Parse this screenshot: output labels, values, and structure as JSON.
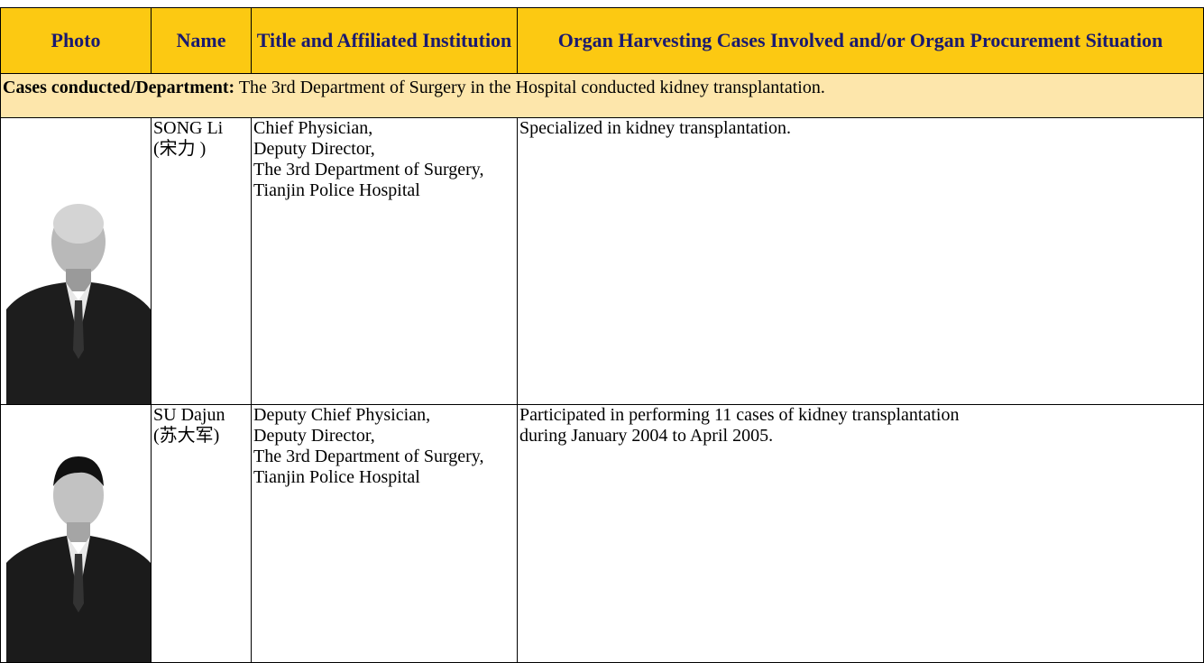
{
  "header": {
    "columns": [
      "Photo",
      "Name",
      "Title and Affiliated Institution",
      "Organ Harvesting Cases Involved and/or Organ Procurement Situation"
    ]
  },
  "section": {
    "label": "Cases conducted/Department:",
    "text": "The 3rd Department of Surgery in the Hospital conducted kidney transplantation."
  },
  "rows": [
    {
      "name": "SONG Li",
      "name_cn": "(宋力 )",
      "title": [
        "Chief Physician,",
        "Deputy Director,",
        "The 3rd Department of Surgery,",
        "Tianjin Police Hospital"
      ],
      "cases": "Specialized in kidney transplantation."
    },
    {
      "name": "SU Dajun",
      "name_cn": "(苏大军)",
      "title": [
        "Deputy Chief Physician,",
        "Deputy Director,",
        "The 3rd Department of Surgery,",
        "Tianjin Police Hospital"
      ],
      "cases": "Participated in performing 11 cases of kidney transplantation during January 2004 to April 2005."
    }
  ]
}
